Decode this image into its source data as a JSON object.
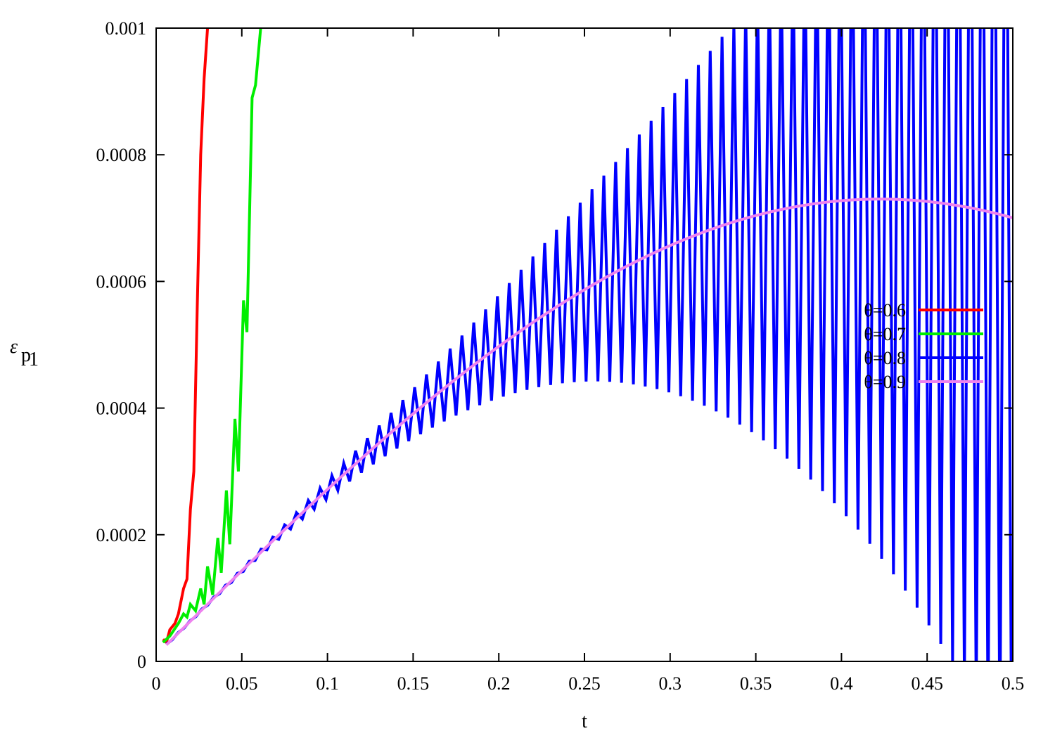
{
  "chart_data": {
    "type": "line",
    "title": "",
    "xlabel": "t",
    "ylabel_base": "ε",
    "ylabel_sub": "p",
    "ylabel_subsub": "1",
    "xlim": [
      0,
      0.5
    ],
    "ylim": [
      0,
      0.001
    ],
    "x_ticks": [
      0,
      0.05,
      0.1,
      0.15,
      0.2,
      0.25,
      0.3,
      0.35,
      0.4,
      0.45,
      0.5
    ],
    "x_tick_labels": [
      "0",
      "0.05",
      "0.1",
      "0.15",
      "0.2",
      "0.25",
      "0.3",
      "0.35",
      "0.4",
      "0.45",
      "0.5"
    ],
    "y_ticks": [
      0,
      0.0002,
      0.0004,
      0.0006,
      0.0008,
      0.001
    ],
    "y_tick_labels": [
      "0",
      "0.0002",
      "0.0004",
      "0.0006",
      "0.0008",
      "0.001"
    ],
    "grid": false,
    "legend_position": "right",
    "series": [
      {
        "name": "θ=0.6",
        "color": "#ff0000",
        "x": [
          0.004,
          0.006,
          0.008,
          0.011,
          0.013,
          0.016,
          0.018,
          0.02,
          0.022,
          0.024,
          0.026,
          0.028,
          0.03
        ],
        "y": [
          3.5e-05,
          3e-05,
          5e-05,
          6e-05,
          7.5e-05,
          0.000115,
          0.00013,
          0.00024,
          0.0003,
          0.00056,
          0.0008,
          0.00092,
          0.001
        ]
      },
      {
        "name": "θ=0.7",
        "color": "#00ee00",
        "x": [
          0.004,
          0.008,
          0.013,
          0.016,
          0.018,
          0.02,
          0.023,
          0.026,
          0.028,
          0.03,
          0.033,
          0.036,
          0.038,
          0.041,
          0.043,
          0.046,
          0.048,
          0.051,
          0.053,
          0.056,
          0.058,
          0.061
        ],
        "y": [
          3e-05,
          4e-05,
          6e-05,
          7.5e-05,
          7e-05,
          9e-05,
          8e-05,
          0.000115,
          9e-05,
          0.00015,
          0.000105,
          0.000195,
          0.00014,
          0.00027,
          0.000185,
          0.000383,
          0.0003,
          0.00057,
          0.00052,
          0.00089,
          0.00091,
          0.001
        ]
      },
      {
        "name": "θ=0.8",
        "color": "#0000ff",
        "generator": "oscillating",
        "amplitude_growth": 1.33e-05
      },
      {
        "name": "θ=0.9",
        "color": "#ee82ee",
        "generator": "smooth"
      }
    ]
  }
}
